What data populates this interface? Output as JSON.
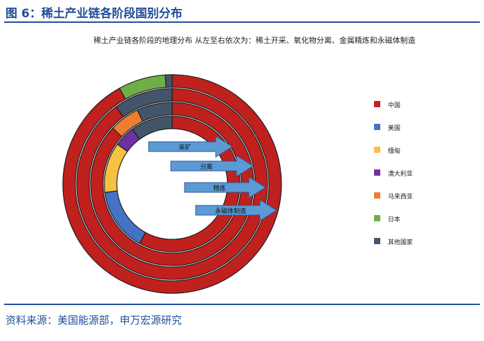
{
  "figure": {
    "title": "图 6：稀土产业链各阶段国别分布",
    "source": "资料来源：美国能源部，申万宏源研究"
  },
  "chart_data": {
    "type": "donut",
    "title": "稀土产业链各阶段的地理分布 从左至右依次为：稀土开采、氧化物分离、金属精炼和永磁体制造",
    "legend_position": "right",
    "categories": [
      "中国",
      "美国",
      "缅甸",
      "澳大利亚",
      "马来西亚",
      "日本",
      "其他国家"
    ],
    "colors": [
      "#c0201e",
      "#4472c4",
      "#f5c242",
      "#7030a0",
      "#ed7d31",
      "#70ad47",
      "#44546a"
    ],
    "rings": [
      {
        "label": "永磁体制造",
        "values": [
          92,
          0,
          0,
          0,
          0,
          7,
          1
        ]
      },
      {
        "label": "精炼",
        "values": [
          90,
          0,
          0,
          0,
          0,
          0,
          10
        ]
      },
      {
        "label": "分离",
        "values": [
          87,
          0,
          0,
          0,
          6,
          0,
          7
        ]
      },
      {
        "label": "采矿",
        "values": [
          58,
          15,
          12,
          5,
          0,
          0,
          10
        ]
      }
    ]
  }
}
